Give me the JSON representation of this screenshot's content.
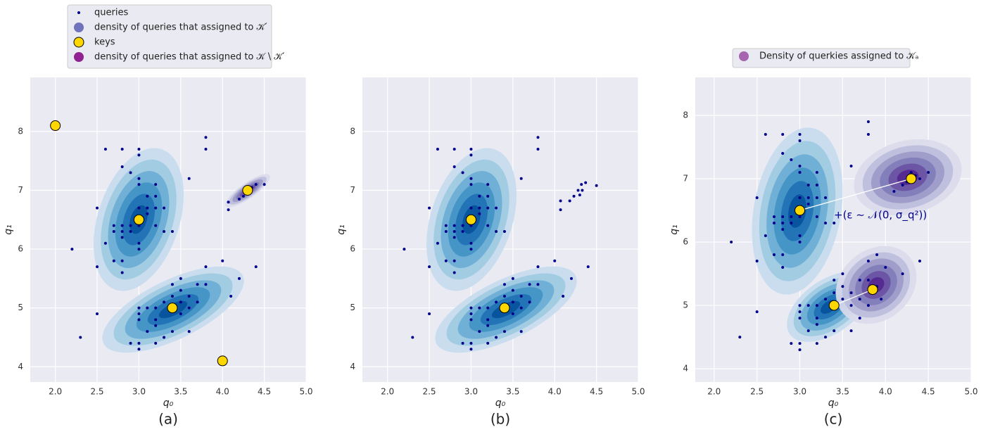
{
  "chart_data": [
    {
      "type": "scatter",
      "caption": "(a)",
      "xlabel": "q₀",
      "ylabel": "q₁",
      "xlim": [
        1.7,
        5.0
      ],
      "ylim": [
        3.74,
        8.92
      ],
      "xticks": [
        {
          "value": 2,
          "label": "2.0"
        },
        {
          "value": 2.5,
          "label": "2.5"
        },
        {
          "value": 3,
          "label": "3.0"
        },
        {
          "value": 3.5,
          "label": "3.5"
        },
        {
          "value": 4,
          "label": "4.0"
        },
        {
          "value": 4.5,
          "label": "4.5"
        },
        {
          "value": 5,
          "label": "5.0"
        }
      ],
      "yticks": [
        4,
        5,
        6,
        7,
        8
      ],
      "grid": true,
      "series": [
        {
          "name": "queries",
          "color": "#00008b",
          "marker_size": 2,
          "x": [
            2.6,
            2.8,
            3.0,
            3.0,
            2.8,
            2.9,
            3.0,
            3.0,
            3.2,
            2.7,
            2.7,
            2.8,
            2.8,
            2.8,
            2.9,
            2.9,
            3.0,
            3.0,
            3.1,
            3.1,
            3.1,
            3.2,
            3.2,
            3.3,
            3.2,
            3.3,
            3.4,
            3.0,
            3.0,
            2.6,
            2.7,
            2.8,
            2.8,
            2.5,
            2.5,
            2.2,
            3.6,
            3.8,
            3.8,
            3.0,
            3.0,
            3.0,
            3.1,
            3.2,
            3.2,
            3.3,
            3.4,
            3.4,
            3.5,
            3.5,
            3.6,
            3.5,
            3.6,
            3.7,
            3.7,
            3.8,
            3.8,
            3.1,
            3.2,
            3.4,
            3.3,
            3.6,
            2.9,
            3.0,
            3.0,
            3.2,
            2.5,
            2.3,
            4.0,
            4.1,
            4.2,
            4.4,
            3.5,
            4.07,
            4.07,
            4.2,
            4.25,
            4.3,
            4.35,
            4.4,
            4.5
          ],
          "values": [
            7.7,
            7.7,
            7.7,
            7.6,
            7.4,
            7.3,
            7.2,
            7.1,
            7.1,
            6.4,
            6.3,
            6.4,
            6.3,
            6.2,
            6.4,
            6.3,
            6.4,
            6.7,
            6.7,
            6.6,
            6.9,
            6.7,
            6.9,
            6.7,
            6.4,
            6.3,
            6.3,
            6.1,
            6.0,
            6.1,
            5.8,
            5.8,
            5.6,
            6.7,
            5.7,
            6.0,
            7.2,
            7.9,
            7.7,
            5.0,
            4.9,
            4.8,
            5.0,
            5.0,
            4.8,
            5.1,
            5.2,
            5.4,
            5.5,
            5.3,
            5.2,
            5.1,
            5.0,
            5.1,
            5.4,
            5.4,
            5.7,
            4.6,
            4.7,
            4.6,
            4.5,
            4.6,
            4.4,
            4.4,
            4.3,
            4.4,
            4.9,
            4.5,
            5.8,
            5.2,
            5.5,
            5.7,
            4.9,
            6.67,
            6.8,
            6.85,
            6.9,
            7.0,
            7.05,
            7.1,
            7.1
          ]
        },
        {
          "name": "density of queries that assigned to 𝒦′",
          "color": "#5b5db3",
          "marker_size": 7
        },
        {
          "name": "keys",
          "color": "#ffd700",
          "edgecolor": "#000000",
          "marker_size": 7,
          "x": [
            2.0,
            3.0,
            3.4,
            4.3,
            4.0
          ],
          "values": [
            8.1,
            6.5,
            5.0,
            7.0,
            4.1
          ]
        },
        {
          "name": "density of queries that assigned to 𝒦 \\ 𝒦′",
          "color": "#800080",
          "marker_size": 7
        }
      ]
    },
    {
      "type": "scatter",
      "caption": "(b)",
      "xlabel": "q₀",
      "ylabel": "q₁",
      "xlim": [
        1.7,
        5.0
      ],
      "ylim": [
        3.74,
        8.92
      ],
      "xticks": [
        {
          "value": 2,
          "label": "2.0"
        },
        {
          "value": 2.5,
          "label": "2.5"
        },
        {
          "value": 3,
          "label": "3.0"
        },
        {
          "value": 3.5,
          "label": "3.5"
        },
        {
          "value": 4,
          "label": "4.0"
        },
        {
          "value": 4.5,
          "label": "4.5"
        },
        {
          "value": 5,
          "label": "5.0"
        }
      ],
      "yticks": [
        4,
        5,
        6,
        7,
        8
      ],
      "grid": true,
      "series": [
        {
          "color": "#00008b",
          "marker_size": 2,
          "x": [
            2.6,
            2.8,
            3.0,
            3.0,
            2.8,
            2.9,
            3.0,
            3.0,
            3.2,
            2.7,
            2.7,
            2.8,
            2.8,
            2.8,
            2.9,
            2.9,
            3.0,
            3.0,
            3.1,
            3.1,
            3.1,
            3.2,
            3.2,
            3.3,
            3.2,
            3.3,
            3.4,
            3.0,
            3.0,
            2.6,
            2.7,
            2.8,
            2.8,
            2.5,
            2.5,
            2.2,
            3.6,
            3.8,
            3.8,
            3.0,
            3.0,
            3.0,
            3.1,
            3.2,
            3.2,
            3.3,
            3.4,
            3.4,
            3.5,
            3.5,
            3.6,
            3.5,
            3.6,
            3.7,
            3.7,
            3.8,
            3.8,
            3.1,
            3.2,
            3.4,
            3.3,
            3.6,
            2.9,
            3.0,
            3.0,
            3.2,
            2.5,
            2.3,
            4.0,
            4.1,
            4.2,
            4.4,
            3.5,
            4.07,
            4.07,
            4.18,
            4.23,
            4.28,
            4.32,
            4.37,
            4.33,
            4.3,
            4.5
          ],
          "values": [
            7.7,
            7.7,
            7.7,
            7.6,
            7.4,
            7.3,
            7.2,
            7.1,
            7.1,
            6.4,
            6.3,
            6.4,
            6.3,
            6.2,
            6.4,
            6.3,
            6.4,
            6.7,
            6.7,
            6.6,
            6.9,
            6.7,
            6.9,
            6.7,
            6.4,
            6.3,
            6.3,
            6.1,
            6.0,
            6.1,
            5.8,
            5.8,
            5.6,
            6.7,
            5.7,
            6.0,
            7.2,
            7.9,
            7.7,
            5.0,
            4.9,
            4.8,
            5.0,
            5.0,
            4.8,
            5.1,
            5.2,
            5.4,
            5.5,
            5.3,
            5.2,
            5.1,
            5.0,
            5.1,
            5.4,
            5.4,
            5.7,
            4.6,
            4.7,
            4.6,
            4.5,
            4.6,
            4.4,
            4.4,
            4.3,
            4.4,
            4.9,
            4.5,
            5.8,
            5.2,
            5.5,
            5.7,
            4.9,
            6.67,
            6.82,
            6.82,
            6.9,
            7.0,
            7.1,
            7.13,
            7.0,
            6.92,
            7.08
          ]
        },
        {
          "color": "#ffd700",
          "edgecolor": "#000000",
          "marker_size": 7,
          "x": [
            3.0,
            3.4
          ],
          "values": [
            6.5,
            5.0
          ]
        }
      ]
    },
    {
      "type": "scatter",
      "caption": "(c)",
      "xlabel": "q₀",
      "ylabel": "q₁",
      "xlim": [
        1.78,
        5.0
      ],
      "ylim": [
        3.79,
        8.6
      ],
      "xticks": [
        {
          "value": 2,
          "label": "2.0"
        },
        {
          "value": 2.5,
          "label": "2.5"
        },
        {
          "value": 3,
          "label": "3.0"
        },
        {
          "value": 3.5,
          "label": "3.5"
        },
        {
          "value": 4,
          "label": "4.0"
        },
        {
          "value": 4.5,
          "label": "4.5"
        },
        {
          "value": 5,
          "label": "5.0"
        }
      ],
      "yticks": [
        4,
        5,
        6,
        7,
        8
      ],
      "grid": true,
      "annotation": "+(ε ∼ 𝒩(0, σ_q²))",
      "series": [
        {
          "color": "#00008b",
          "marker_size": 2,
          "x": [
            2.6,
            2.8,
            3.0,
            3.0,
            2.8,
            2.9,
            3.0,
            3.0,
            3.2,
            2.7,
            2.7,
            2.8,
            2.8,
            2.8,
            2.9,
            2.9,
            3.0,
            3.0,
            3.1,
            3.1,
            3.1,
            3.2,
            3.2,
            3.3,
            3.2,
            3.3,
            3.4,
            3.0,
            3.0,
            2.6,
            2.7,
            2.8,
            2.8,
            2.5,
            2.5,
            2.2,
            3.6,
            3.8,
            3.8,
            3.0,
            3.0,
            3.0,
            3.1,
            3.2,
            3.2,
            3.3,
            3.4,
            3.4,
            3.5,
            3.5,
            3.6,
            3.5,
            3.6,
            3.7,
            3.7,
            3.8,
            3.8,
            3.1,
            3.2,
            3.4,
            3.3,
            3.6,
            2.9,
            3.0,
            3.0,
            3.2,
            2.5,
            2.3,
            3.9,
            4.0,
            4.2,
            4.4,
            3.9,
            3.95,
            3.7,
            3.8,
            4.1,
            4.2,
            4.3,
            4.4,
            4.5,
            4.35,
            4.25
          ],
          "values": [
            7.7,
            7.7,
            7.7,
            7.6,
            7.4,
            7.3,
            7.2,
            7.1,
            7.1,
            6.4,
            6.3,
            6.4,
            6.3,
            6.2,
            6.4,
            6.3,
            6.4,
            6.7,
            6.7,
            6.6,
            6.9,
            6.7,
            6.9,
            6.7,
            6.4,
            6.3,
            6.3,
            6.1,
            6.0,
            6.1,
            5.8,
            5.8,
            5.6,
            6.7,
            5.7,
            6.0,
            7.2,
            7.9,
            7.7,
            5.0,
            4.9,
            4.8,
            5.0,
            5.0,
            4.8,
            5.1,
            5.2,
            5.4,
            5.5,
            5.3,
            5.2,
            5.1,
            5.0,
            5.1,
            5.4,
            5.4,
            5.7,
            4.6,
            4.7,
            4.6,
            4.5,
            4.6,
            4.4,
            4.4,
            4.3,
            4.4,
            4.9,
            4.5,
            5.8,
            5.6,
            5.5,
            5.7,
            5.3,
            5.1,
            4.8,
            5.0,
            6.8,
            6.9,
            7.1,
            7.0,
            7.1,
            7.05,
            6.95
          ]
        },
        {
          "color": "#ffd700",
          "edgecolor": "#000000",
          "marker_size": 7,
          "x": [
            3.0,
            4.3,
            3.4,
            3.85
          ],
          "values": [
            6.5,
            7.0,
            5.0,
            5.25
          ]
        },
        {
          "name": "Density of querkies assigned to 𝒦ₐ",
          "color": "#9b4ea3",
          "marker_size": 7
        }
      ]
    }
  ]
}
